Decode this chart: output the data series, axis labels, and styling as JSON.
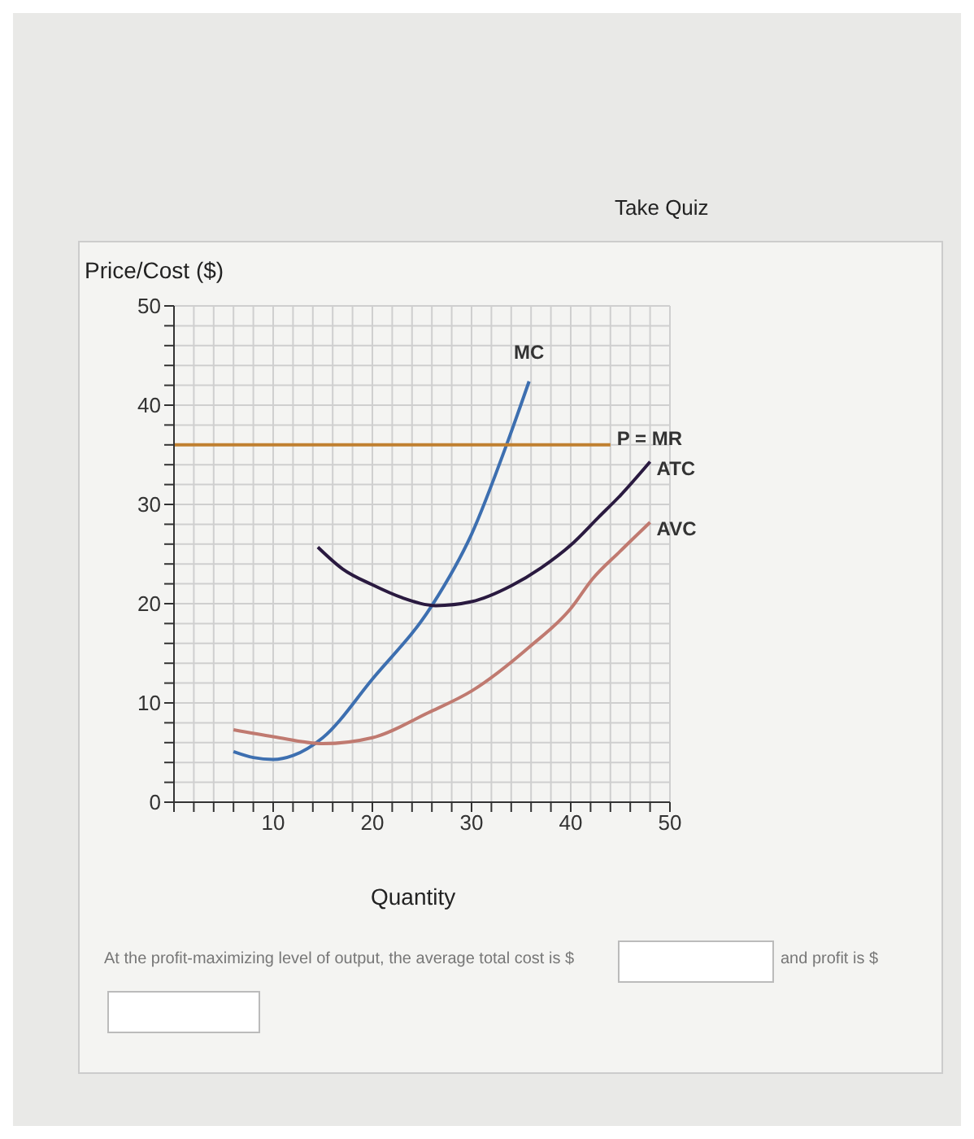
{
  "chart_data": {
    "type": "line",
    "ylabel": "Price/Cost ($)",
    "xlabel": "Quantity",
    "annotations": [
      "Take Quiz",
      "At the profit-maximizing level of output, the average total cost is $",
      "and profit is $"
    ],
    "xlim": [
      0,
      50
    ],
    "ylim": [
      0,
      50
    ],
    "xticks": [
      {
        "value": 0,
        "label": null
      },
      {
        "value": 2,
        "label": null
      },
      {
        "value": 4,
        "label": null
      },
      {
        "value": 6,
        "label": null
      },
      {
        "value": 8,
        "label": null
      },
      10,
      {
        "value": 12,
        "label": null
      },
      {
        "value": 14,
        "label": null
      },
      {
        "value": 16,
        "label": null
      },
      {
        "value": 18,
        "label": null
      },
      20,
      {
        "value": 22,
        "label": null
      },
      {
        "value": 24,
        "label": null
      },
      {
        "value": 26,
        "label": null
      },
      {
        "value": 28,
        "label": null
      },
      30,
      {
        "value": 32,
        "label": null
      },
      {
        "value": 34,
        "label": null
      },
      {
        "value": 36,
        "label": null
      },
      {
        "value": 38,
        "label": null
      },
      40,
      {
        "value": 42,
        "label": null
      },
      {
        "value": 44,
        "label": null
      },
      {
        "value": 46,
        "label": null
      },
      {
        "value": 48,
        "label": null
      },
      50
    ],
    "yticks": [
      0,
      {
        "value": 2,
        "label": null
      },
      {
        "value": 4,
        "label": null
      },
      {
        "value": 6,
        "label": null
      },
      {
        "value": 8,
        "label": null
      },
      10,
      {
        "value": 12,
        "label": null
      },
      {
        "value": 14,
        "label": null
      },
      {
        "value": 16,
        "label": null
      },
      {
        "value": 18,
        "label": null
      },
      20,
      {
        "value": 22,
        "label": null
      },
      {
        "value": 24,
        "label": null
      },
      {
        "value": 26,
        "label": null
      },
      {
        "value": 28,
        "label": null
      },
      30,
      {
        "value": 32,
        "label": null
      },
      {
        "value": 34,
        "label": null
      },
      {
        "value": 36,
        "label": null
      },
      {
        "value": 38,
        "label": null
      },
      40,
      {
        "value": 42,
        "label": null
      },
      {
        "value": 44,
        "label": null
      },
      {
        "value": 46,
        "label": null
      },
      {
        "value": 48,
        "label": null
      },
      50
    ],
    "grid": true,
    "marker": "none",
    "line_style": "solid",
    "series": [
      {
        "name": "MC",
        "color": "#3d6fb0",
        "x": [
          6,
          8,
          10,
          12,
          15,
          20,
          26,
          30,
          33.6,
          35.8
        ],
        "values": [
          5.1,
          4.5,
          4.3,
          4.7,
          6.5,
          12.4,
          19.8,
          27,
          36.2,
          42.4
        ]
      },
      {
        "name": "P = MR",
        "color": "#c08030",
        "x": [
          0,
          44
        ],
        "values": [
          36,
          36
        ]
      },
      {
        "name": "ATC",
        "color": "#2a1a40",
        "x": [
          14.5,
          17,
          20,
          23,
          26.4,
          30,
          34,
          37,
          40,
          42.8,
          45,
          48
        ],
        "values": [
          25.7,
          23.5,
          21.9,
          20.6,
          19.8,
          20.2,
          21.8,
          23.6,
          25.9,
          28.7,
          30.9,
          34.3
        ]
      },
      {
        "name": "AVC",
        "color": "#c07a70",
        "x": [
          6,
          10,
          15,
          20,
          25.6,
          30,
          35.9,
          40,
          42.2,
          45,
          48
        ],
        "values": [
          7.3,
          6.6,
          5.9,
          6.5,
          9,
          11.2,
          15.7,
          19.5,
          22.5,
          25.3,
          28.2
        ]
      }
    ]
  }
}
